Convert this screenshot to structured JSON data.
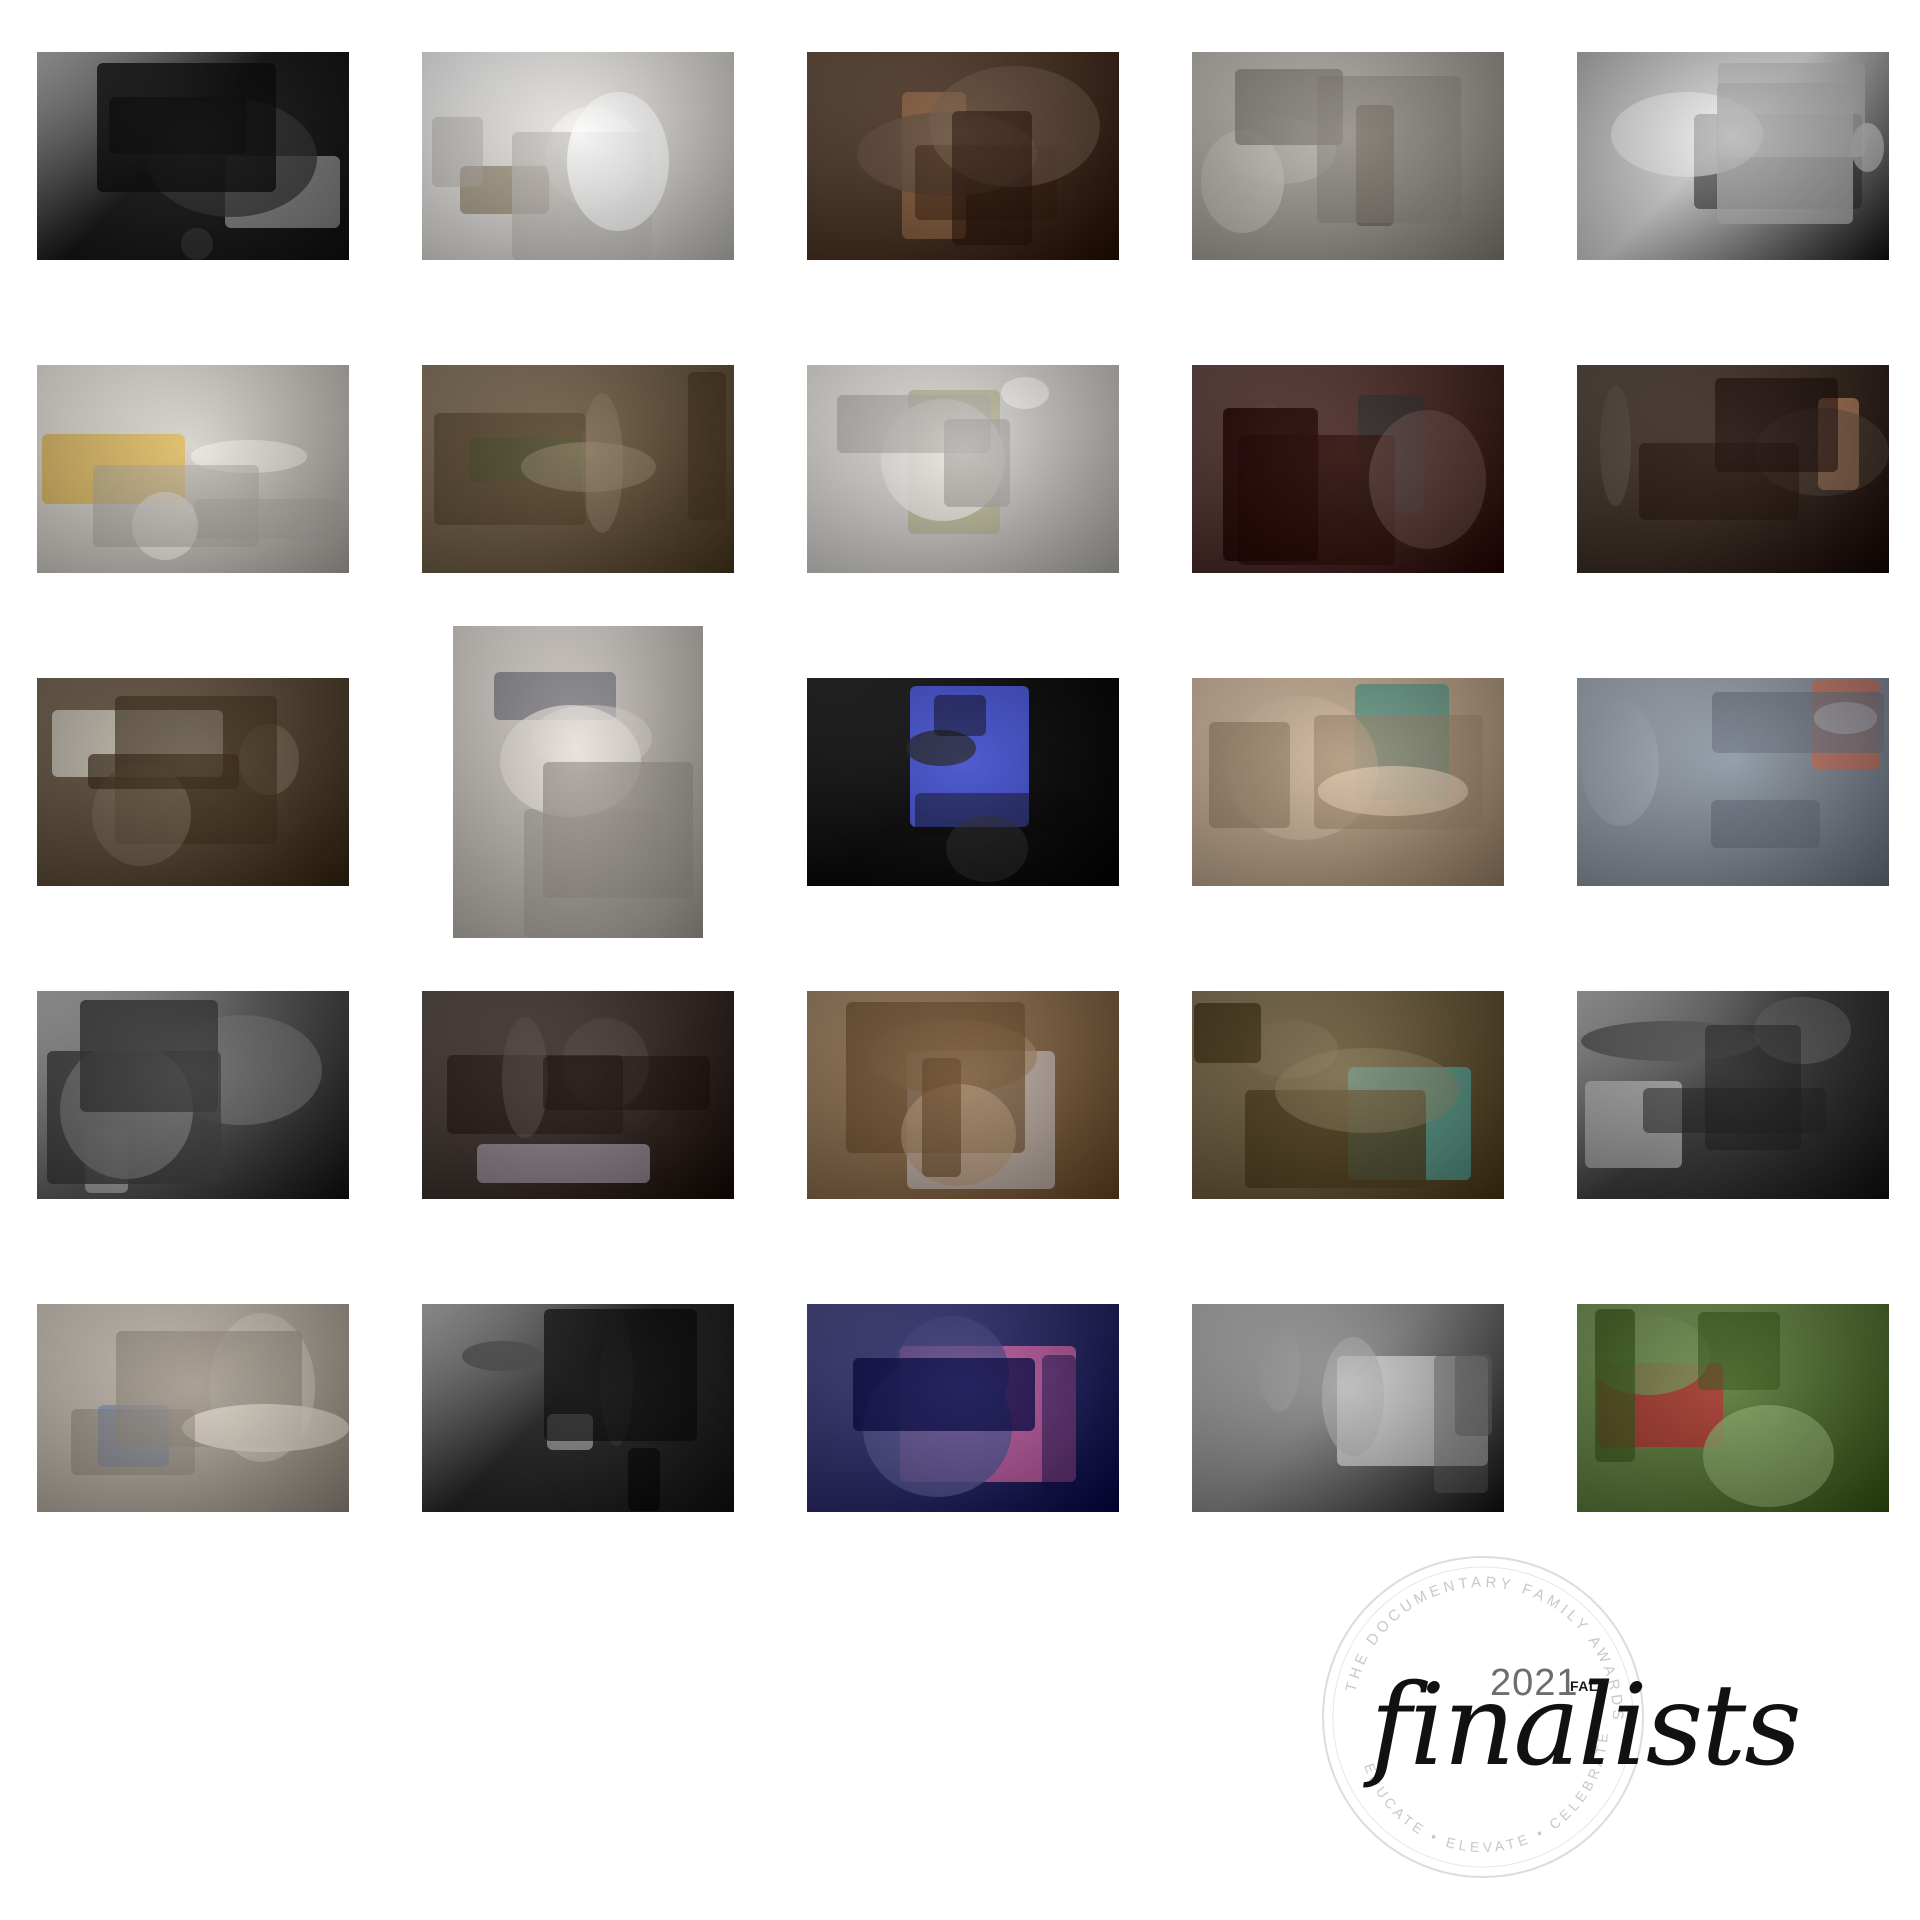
{
  "gallery": {
    "photos": [
      {
        "id": 1,
        "tone": "bw",
        "bg": "#141414",
        "accent": "#e8e8e8",
        "scene": "dark-hallway-door"
      },
      {
        "id": 2,
        "tone": "color",
        "bg": "#e7e4df",
        "accent": "#7c6a4a",
        "scene": "child-on-bunk-bed"
      },
      {
        "id": 3,
        "tone": "color",
        "bg": "#4a3322",
        "accent": "#b07a52",
        "scene": "messy-living-room-sofa"
      },
      {
        "id": 4,
        "tone": "color",
        "bg": "#a9a49d",
        "accent": "#5b4a3e",
        "scene": "mother-and-child-window"
      },
      {
        "id": 5,
        "tone": "bw",
        "bg": "#dcdcdc",
        "accent": "#2a2a2a",
        "scene": "bathroom-family"
      },
      {
        "id": 6,
        "tone": "color",
        "bg": "#d6d2cc",
        "accent": "#e5b12c",
        "scene": "kid-jumping-on-couch"
      },
      {
        "id": 7,
        "tone": "color",
        "bg": "#6e5c44",
        "accent": "#4f6a3a",
        "scene": "family-eating-on-sofa"
      },
      {
        "id": 8,
        "tone": "color",
        "bg": "#d9d6d2",
        "accent": "#b8b58a",
        "scene": "girl-in-doorway"
      },
      {
        "id": 9,
        "tone": "color",
        "bg": "#4a2a26",
        "accent": "#2a2a2a",
        "scene": "pile-of-devices"
      },
      {
        "id": 10,
        "tone": "color",
        "bg": "#3a2b22",
        "accent": "#c98a62",
        "scene": "woman-in-bed-laptop"
      },
      {
        "id": 11,
        "tone": "color",
        "bg": "#5a4a36",
        "accent": "#e6e1d6",
        "scene": "toddler-at-door"
      },
      {
        "id": 12,
        "tone": "color",
        "bg": "#c8c2bc",
        "accent": "#7a7a82",
        "scene": "mother-nursing"
      },
      {
        "id": 13,
        "tone": "color",
        "bg": "#060606",
        "accent": "#5060ff",
        "scene": "light-painting-night"
      },
      {
        "id": 14,
        "tone": "color",
        "bg": "#c0a78c",
        "accent": "#5c9a8a",
        "scene": "child-toilet-paper"
      },
      {
        "id": 15,
        "tone": "color",
        "bg": "#8e97a3",
        "accent": "#ff5a2a",
        "scene": "girl-jumping-beach"
      },
      {
        "id": 16,
        "tone": "bw",
        "bg": "#5a5a5a",
        "accent": "#f2f2f2",
        "scene": "father-and-child-couch"
      },
      {
        "id": 17,
        "tone": "color",
        "bg": "#3a2e2a",
        "accent": "#d9d2e6",
        "scene": "child-crying-car"
      },
      {
        "id": 18,
        "tone": "color",
        "bg": "#8a6a4a",
        "accent": "#e6e6f0",
        "scene": "blanket-on-bed"
      },
      {
        "id": 19,
        "tone": "color",
        "bg": "#6a5a3a",
        "accent": "#4fc2c2",
        "scene": "child-by-pool-palms"
      },
      {
        "id": 20,
        "tone": "bw",
        "bg": "#3a3a3a",
        "accent": "#d9d9d9",
        "scene": "kids-watching-tv"
      },
      {
        "id": 21,
        "tone": "color",
        "bg": "#b9b0a4",
        "accent": "#6a8ac4",
        "scene": "kids-in-doorways"
      },
      {
        "id": 22,
        "tone": "bw",
        "bg": "#222222",
        "accent": "#bdbdbd",
        "scene": "silhouette-window"
      },
      {
        "id": 23,
        "tone": "color",
        "bg": "#2a2a6a",
        "accent": "#ff72b8",
        "scene": "inside-hot-air-balloon"
      },
      {
        "id": 24,
        "tone": "bw",
        "bg": "#8a8a8a",
        "accent": "#e8e8e8",
        "scene": "child-and-adult-legs"
      },
      {
        "id": 25,
        "tone": "color",
        "bg": "#5a7a3a",
        "accent": "#c21f2a",
        "scene": "kid-with-hose-grass"
      }
    ]
  },
  "badge": {
    "ring_text": "THE DOCUMENTARY FAMILY AWARDS",
    "ring_text_bottom": "EDUCATE • ELEVATE • CELEBRATE",
    "year": "2021",
    "season": "FALL",
    "title": "finalists"
  },
  "colors": {
    "background": "#ffffff",
    "seal_stroke": "#dcdcdc",
    "title_color": "#111111"
  }
}
